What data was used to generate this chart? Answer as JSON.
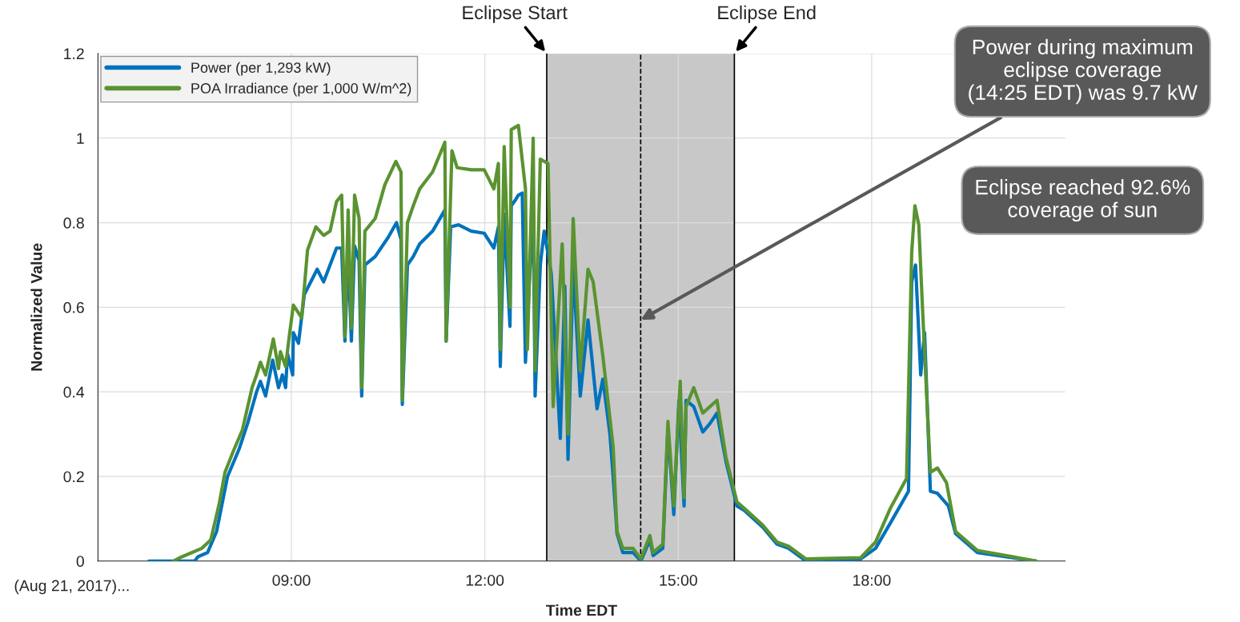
{
  "chart_data": {
    "type": "line",
    "xlabel": "Time EDT",
    "ylabel": "Normalized Value",
    "xlim": [
      6,
      21
    ],
    "ylim": [
      0,
      1.2
    ],
    "xticks": [
      {
        "value": 9,
        "label": "09:00"
      },
      {
        "value": 12,
        "label": "12:00"
      },
      {
        "value": 15,
        "label": "15:00"
      },
      {
        "value": 18,
        "label": "18:00"
      }
    ],
    "yticks": [
      0,
      0.2,
      0.4,
      0.6,
      0.8,
      1,
      1.2
    ],
    "grid": true,
    "legend": "top left",
    "line_style": "solid",
    "marker": "none",
    "series": [
      {
        "name": "Power (per 1,293 kW)",
        "color": "#0072bd",
        "x": [
          6.79,
          7.17,
          7.5,
          7.55,
          7.7,
          7.84,
          8.01,
          8.19,
          8.32,
          8.46,
          8.52,
          8.6,
          8.71,
          8.8,
          8.86,
          8.91,
          8.94,
          9.02,
          9.03,
          9.11,
          9.2,
          9.4,
          9.5,
          9.7,
          9.78,
          9.83,
          9.88,
          9.93,
          9.98,
          10.05,
          10.09,
          10.14,
          10.3,
          10.5,
          10.63,
          10.7,
          10.72,
          10.8,
          10.89,
          10.99,
          11.19,
          11.38,
          11.4,
          11.47,
          11.59,
          11.79,
          11.99,
          12.14,
          12.21,
          12.24,
          12.3,
          12.39,
          12.41,
          12.48,
          12.52,
          12.58,
          12.63,
          12.75,
          12.78,
          12.86,
          12.92,
          13.03,
          13.17,
          13.24,
          13.29,
          13.37,
          13.48,
          13.6,
          13.74,
          13.83,
          13.94,
          13.99,
          14.05,
          14.14,
          14.3,
          14.42,
          14.56,
          14.61,
          14.76,
          14.84,
          14.93,
          15.01,
          15.09,
          15.12,
          15.24,
          15.38,
          15.49,
          15.6,
          15.74,
          15.91,
          16.02,
          16.31,
          16.53,
          16.71,
          16.98,
          17.83,
          18.06,
          18.29,
          18.57,
          18.62,
          18.68,
          18.76,
          18.82,
          18.91,
          19.02,
          19.19,
          19.3,
          19.64,
          20.55
        ],
        "values": [
          0,
          0,
          0,
          0.01,
          0.02,
          0.07,
          0.2,
          0.265,
          0.325,
          0.4,
          0.425,
          0.39,
          0.475,
          0.41,
          0.44,
          0.41,
          0.49,
          0.44,
          0.54,
          0.515,
          0.63,
          0.69,
          0.66,
          0.74,
          0.74,
          0.52,
          0.73,
          0.52,
          0.745,
          0.71,
          0.39,
          0.7,
          0.72,
          0.765,
          0.8,
          0.76,
          0.37,
          0.7,
          0.72,
          0.75,
          0.78,
          0.83,
          0.52,
          0.79,
          0.795,
          0.78,
          0.775,
          0.74,
          0.79,
          0.46,
          0.82,
          0.555,
          0.84,
          0.855,
          0.865,
          0.87,
          0.47,
          0.84,
          0.39,
          0.7,
          0.78,
          0.68,
          0.29,
          0.65,
          0.24,
          0.7,
          0.39,
          0.57,
          0.36,
          0.43,
          0.3,
          0.2,
          0.065,
          0.02,
          0.02,
          0,
          0.05,
          0.013,
          0.03,
          0.315,
          0.11,
          0.38,
          0.13,
          0.38,
          0.365,
          0.305,
          0.325,
          0.35,
          0.235,
          0.13,
          0.12,
          0.08,
          0.04,
          0.03,
          0,
          0.005,
          0.03,
          0.09,
          0.165,
          0.66,
          0.7,
          0.44,
          0.54,
          0.165,
          0.16,
          0.13,
          0.065,
          0.02,
          0
        ]
      },
      {
        "name": "POA Irradiance (per 1,000 W/m^2)",
        "color": "#5a9331",
        "x": [
          7.17,
          7.3,
          7.61,
          7.75,
          7.88,
          7.97,
          8.1,
          8.24,
          8.39,
          8.46,
          8.52,
          8.6,
          8.72,
          8.8,
          8.83,
          8.91,
          8.97,
          9.03,
          9.16,
          9.25,
          9.38,
          9.5,
          9.6,
          9.7,
          9.78,
          9.83,
          9.88,
          9.93,
          9.98,
          10.05,
          10.09,
          10.14,
          10.3,
          10.45,
          10.62,
          10.7,
          10.72,
          10.8,
          10.89,
          10.99,
          11.19,
          11.38,
          11.4,
          11.49,
          11.57,
          11.79,
          11.99,
          12.14,
          12.21,
          12.24,
          12.3,
          12.39,
          12.41,
          12.52,
          12.63,
          12.66,
          12.75,
          12.78,
          12.86,
          12.98,
          13.06,
          13.2,
          13.29,
          13.37,
          13.48,
          13.6,
          13.68,
          13.83,
          13.99,
          14.05,
          14.14,
          14.3,
          14.42,
          14.56,
          14.61,
          14.76,
          14.84,
          14.93,
          15.03,
          15.09,
          15.12,
          15.24,
          15.38,
          15.6,
          15.74,
          15.91,
          16.02,
          16.31,
          16.53,
          16.71,
          16.98,
          17.83,
          18.06,
          18.29,
          18.54,
          18.62,
          18.67,
          18.73,
          18.79,
          18.91,
          19.02,
          19.16,
          19.3,
          19.64,
          20.55
        ],
        "values": [
          0,
          0.01,
          0.03,
          0.05,
          0.135,
          0.21,
          0.26,
          0.31,
          0.41,
          0.44,
          0.47,
          0.44,
          0.525,
          0.455,
          0.495,
          0.46,
          0.535,
          0.605,
          0.575,
          0.735,
          0.79,
          0.77,
          0.78,
          0.85,
          0.865,
          0.53,
          0.83,
          0.55,
          0.865,
          0.81,
          0.41,
          0.78,
          0.81,
          0.89,
          0.945,
          0.92,
          0.38,
          0.8,
          0.84,
          0.88,
          0.92,
          0.99,
          0.52,
          0.97,
          0.93,
          0.925,
          0.925,
          0.88,
          0.94,
          0.5,
          0.98,
          0.6,
          1.02,
          1.03,
          0.88,
          0.5,
          1,
          0.45,
          0.95,
          0.94,
          0.365,
          0.75,
          0.3,
          0.81,
          0.45,
          0.69,
          0.66,
          0.485,
          0.27,
          0.07,
          0.03,
          0.03,
          0.005,
          0.06,
          0.02,
          0.04,
          0.33,
          0.13,
          0.425,
          0.15,
          0.365,
          0.41,
          0.35,
          0.38,
          0.245,
          0.14,
          0.125,
          0.085,
          0.045,
          0.035,
          0.005,
          0.008,
          0.045,
          0.125,
          0.195,
          0.73,
          0.84,
          0.795,
          0.59,
          0.21,
          0.22,
          0.185,
          0.07,
          0.025,
          0
        ]
      }
    ],
    "bands": [
      {
        "axis": "x",
        "from": 12.96,
        "to": 15.87,
        "color": "#c8c8c8"
      }
    ],
    "ref_lines": [
      {
        "axis": "x",
        "value": 12.96,
        "label": "Eclipse Start",
        "color": "#000000",
        "line_style": "solid"
      },
      {
        "axis": "x",
        "value": 15.87,
        "label": "Eclipse End",
        "color": "#000000",
        "line_style": "solid"
      },
      {
        "axis": "x",
        "value": 14.417,
        "color": "#000000",
        "line_style": "dashed"
      }
    ],
    "annotations": [
      "(Aug 21, 2017)...",
      {
        "text": "Power during maximum\neclipse coverage\n(14:25 EDT) was 9.7 kW",
        "x": 14.417,
        "y": 0.57
      },
      "Eclipse reached 92.6%\ncoverage of sun"
    ]
  }
}
